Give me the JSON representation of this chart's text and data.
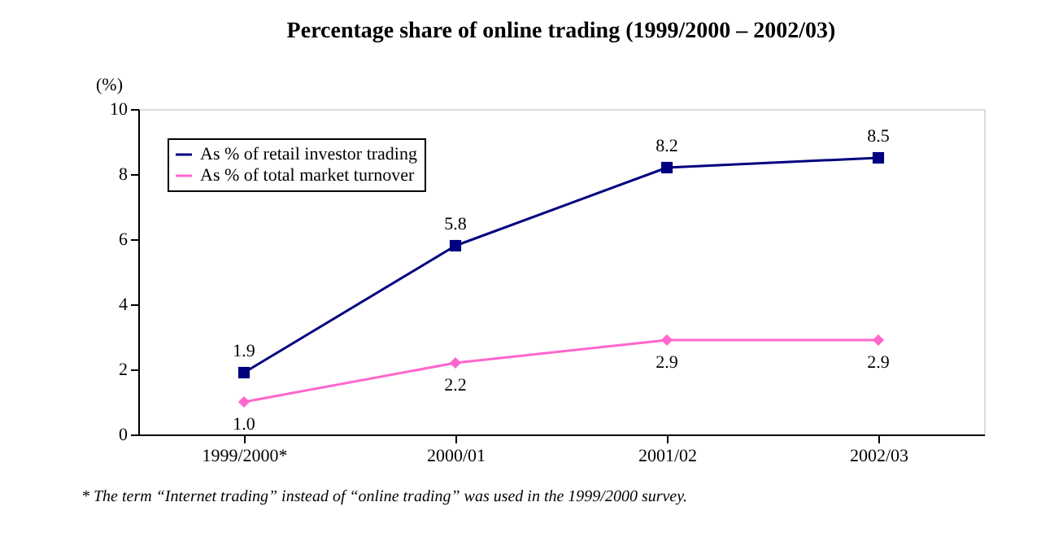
{
  "chart_data": {
    "type": "line",
    "title": "Percentage share of online trading (1999/2000 – 2002/03)",
    "ylabel": "(%)",
    "categories": [
      "1999/2000*",
      "2000/01",
      "2001/02",
      "2002/03"
    ],
    "series": [
      {
        "name": "As % of retail investor trading",
        "color": "#000080",
        "marker": "square",
        "values": [
          1.9,
          5.8,
          8.2,
          8.5
        ],
        "value_labels": [
          "1.9",
          "5.8",
          "8.2",
          "8.5"
        ]
      },
      {
        "name": "As % of total market turnover",
        "color": "#ff66cc",
        "marker": "diamond",
        "values": [
          1.0,
          2.2,
          2.9,
          2.9
        ],
        "value_labels": [
          "1.0",
          "2.2",
          "2.9",
          "2.9"
        ]
      }
    ],
    "ylim": [
      0,
      10
    ],
    "yticks": [
      0,
      2,
      4,
      6,
      8,
      10
    ],
    "grid": false,
    "legend": "top left",
    "annotations": [
      "* The term “Internet trading” instead of “online trading” was used in the 1999/2000 survey."
    ]
  }
}
